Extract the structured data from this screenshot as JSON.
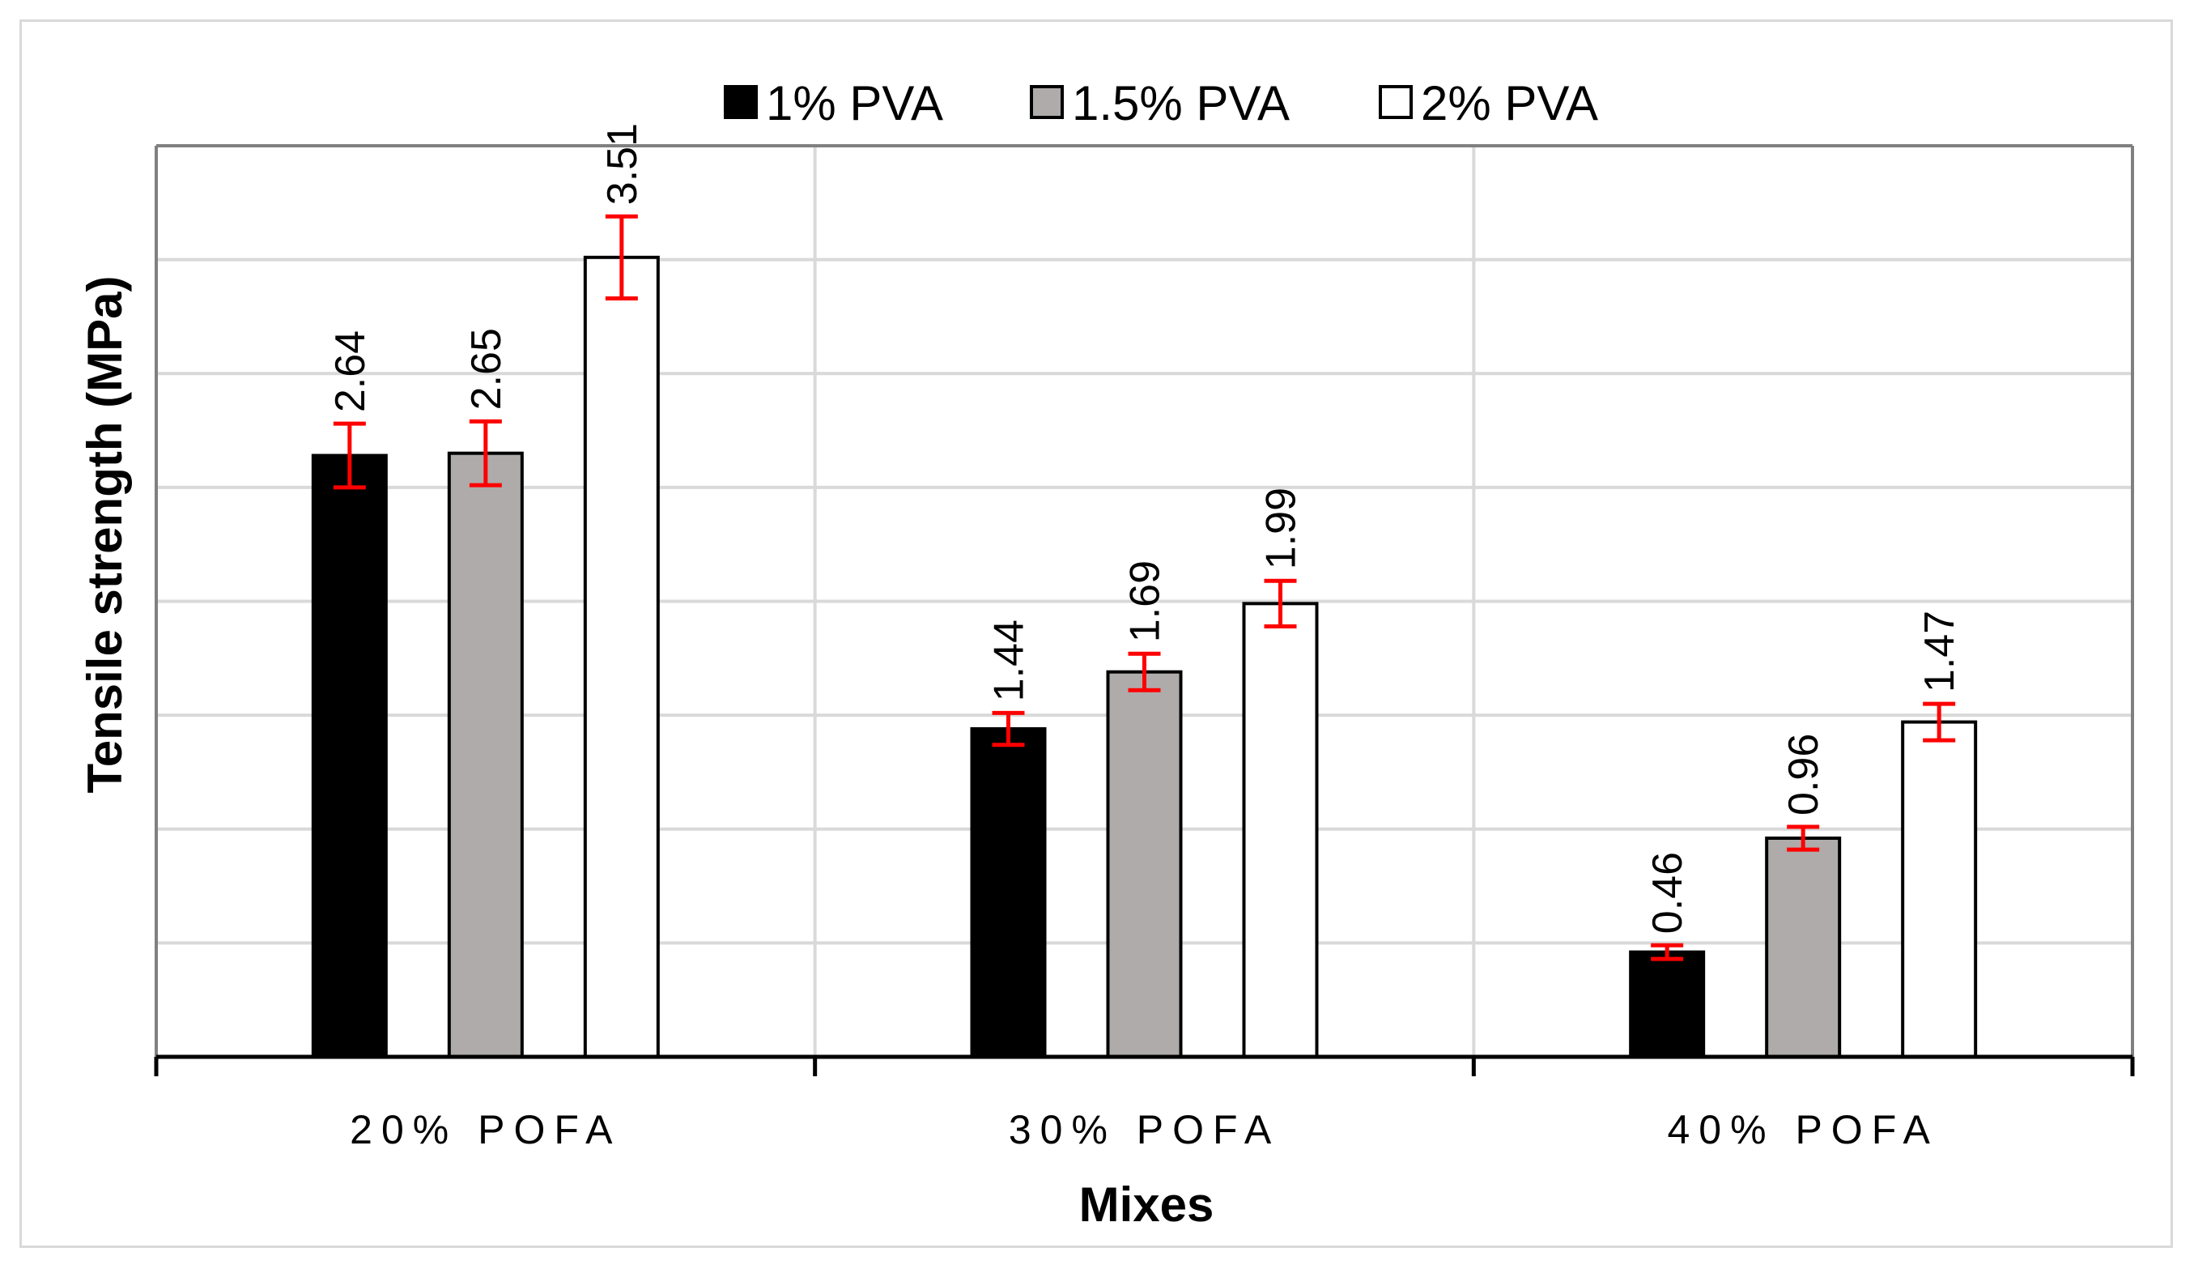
{
  "chart_data": {
    "type": "bar",
    "title": "",
    "xlabel": "Mixes",
    "ylabel": "Tensile strength (MPa)",
    "categories": [
      "20% POFA",
      "30% POFA",
      "40% POFA"
    ],
    "series": [
      {
        "name": "1% PVA",
        "color": "#000000",
        "values": [
          2.64,
          1.44,
          0.46
        ],
        "errors": [
          0.14,
          0.07,
          0.03
        ]
      },
      {
        "name": "1.5% PVA",
        "color": "#afabab",
        "values": [
          2.65,
          1.69,
          0.96
        ],
        "errors": [
          0.14,
          0.08,
          0.05
        ]
      },
      {
        "name": "2% PVA",
        "color": "#ffffff",
        "values": [
          3.51,
          1.99,
          1.47
        ],
        "errors": [
          0.18,
          0.1,
          0.08
        ]
      }
    ],
    "ylim": [
      0,
      4
    ],
    "y_gridlines": [
      0.5,
      1,
      1.5,
      2,
      2.5,
      3,
      3.5
    ],
    "error_bar_color": "#ff0000",
    "legend_position": "top-center",
    "grid": true
  }
}
